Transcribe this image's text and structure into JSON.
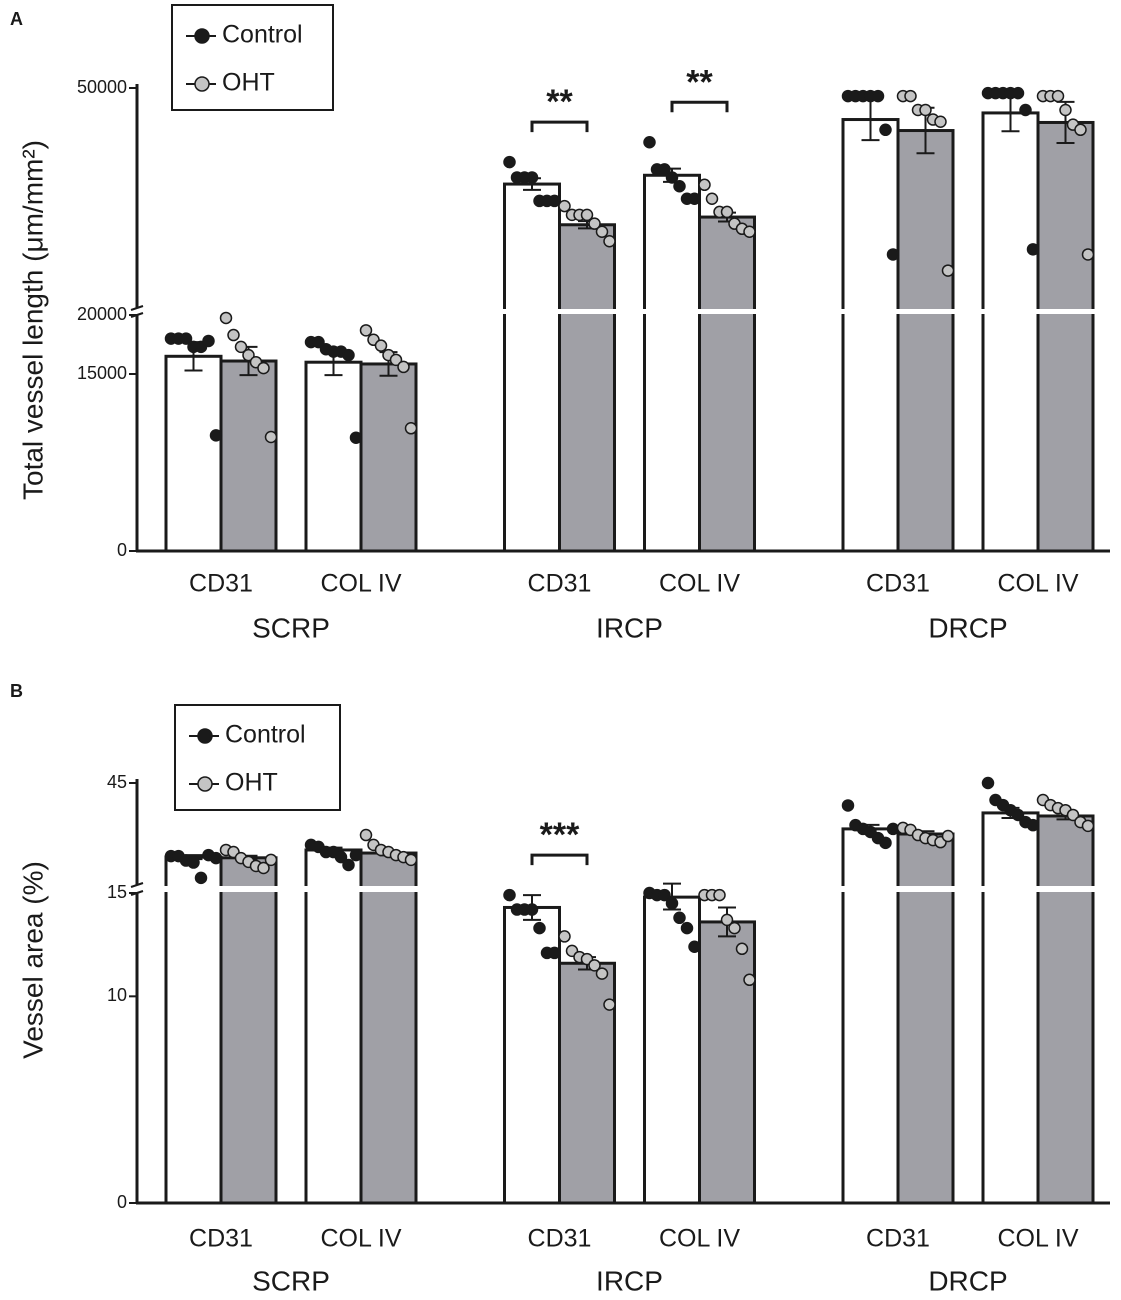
{
  "chart_data": [
    {
      "type": "bar",
      "panel": "A",
      "y_label": "Total vessel length (μm/mm²)",
      "categories": [
        "CD31",
        "COL IV",
        "CD31",
        "COL IV",
        "CD31",
        "COL IV"
      ],
      "groups": [
        "SCRP",
        "IRCP",
        "DRCP"
      ],
      "ylim": [
        0,
        50000
      ],
      "ybreak": 20000,
      "yticks": [
        0,
        15000,
        20000,
        50000
      ],
      "significance": [
        null,
        null,
        "**",
        "**",
        null,
        null
      ],
      "series": [
        {
          "name": "Control",
          "color": "#ffffff",
          "dot_color": "#1a1a1a",
          "values": [
            16500,
            16000,
            36900,
            38100,
            45700,
            46600
          ],
          "errors": [
            1200,
            1100,
            800,
            900,
            2800,
            2500
          ],
          "points": [
            [
              18000,
              18000,
              18000,
              17300,
              17300,
              17800,
              9800
            ],
            [
              17700,
              17700,
              17100,
              16900,
              16900,
              16600,
              9600
            ],
            [
              39900,
              37800,
              37800,
              37800,
              34600,
              34600,
              34600
            ],
            [
              42600,
              38900,
              38900,
              37800,
              36600,
              34900,
              34900
            ],
            [
              48900,
              48900,
              48900,
              48900,
              48900,
              44300,
              27300
            ],
            [
              49300,
              49300,
              49300,
              49300,
              49300,
              47000,
              28000
            ]
          ]
        },
        {
          "name": "OHT",
          "color": "#a0a0a6",
          "dot_color": "#c4c4c4",
          "values": [
            16100,
            15850,
            31350,
            32400,
            44200,
            45300
          ],
          "errors": [
            1200,
            1000,
            500,
            600,
            3100,
            2800
          ],
          "points": [
            [
              19750,
              18300,
              17300,
              16600,
              16000,
              15500,
              9660
            ],
            [
              18700,
              17900,
              17400,
              16600,
              16200,
              15600,
              10400
            ],
            [
              33900,
              32700,
              32700,
              32700,
              31500,
              30400,
              29100
            ],
            [
              36800,
              34900,
              33100,
              33100,
              31500,
              30800,
              30400
            ],
            [
              48900,
              48900,
              47000,
              47000,
              45700,
              45400,
              25100
            ],
            [
              48900,
              48900,
              48900,
              47000,
              45000,
              44300,
              27300
            ]
          ]
        }
      ]
    },
    {
      "type": "bar",
      "panel": "B",
      "y_label": "Vessel area (%)",
      "categories": [
        "CD31",
        "COL IV",
        "CD31",
        "COL IV",
        "CD31",
        "COL IV"
      ],
      "groups": [
        "SCRP",
        "IRCP",
        "DRCP"
      ],
      "ylim": [
        0,
        45
      ],
      "ybreak": 15,
      "yticks": [
        0,
        10,
        15,
        45
      ],
      "significance": [
        null,
        null,
        "***",
        null,
        null,
        null
      ],
      "series": [
        {
          "name": "Control",
          "color": "#ffffff",
          "dot_color": "#1a1a1a",
          "values": [
            23.2,
            25.3,
            14.3,
            14.8,
            31.5,
            36.2
          ],
          "errors": [
            0.6,
            0.7,
            0.6,
            0.6,
            1.2,
            1.5
          ],
          "points": [
            [
              23.5,
              23.5,
              22.2,
              21.6,
              17.1,
              23.8,
              22.9
            ],
            [
              26.8,
              26.2,
              24.7,
              24.7,
              23.2,
              20.9,
              23.8
            ],
            [
              14.9,
              14.2,
              14.2,
              14.2,
              13.3,
              12.1,
              12.1
            ],
            [
              15.0,
              14.9,
              14.9,
              14.5,
              13.8,
              13.3,
              12.4
            ],
            [
              38.4,
              32.6,
              31.5,
              30.6,
              28.8,
              27.4,
              31.5
            ],
            [
              45,
              40,
              38.5,
              37,
              35.6,
              33.5,
              32.6
            ]
          ]
        },
        {
          "name": "OHT",
          "color": "#a0a0a6",
          "dot_color": "#c4c4c4",
          "values": [
            23.0,
            24.4,
            11.6,
            13.6,
            30.0,
            35.3
          ],
          "errors": [
            0.6,
            0.7,
            0.3,
            0.7,
            0.8,
            1.0
          ],
          "points": [
            [
              25.3,
              24.7,
              22.9,
              21.8,
              20.6,
              20.0,
              22.4
            ],
            [
              29.7,
              26.8,
              25.3,
              24.7,
              23.8,
              23.2,
              22.4
            ],
            [
              12.9,
              12.2,
              11.9,
              11.8,
              11.5,
              11.1,
              9.6
            ],
            [
              14.9,
              14.9,
              14.9,
              13.7,
              13.3,
              12.3,
              10.8
            ],
            [
              31.8,
              31.2,
              29.7,
              28.8,
              28.2,
              27.6,
              29.4
            ],
            [
              40,
              38.5,
              37.6,
              37,
              35.6,
              33.5,
              32.4
            ]
          ]
        }
      ]
    }
  ]
}
